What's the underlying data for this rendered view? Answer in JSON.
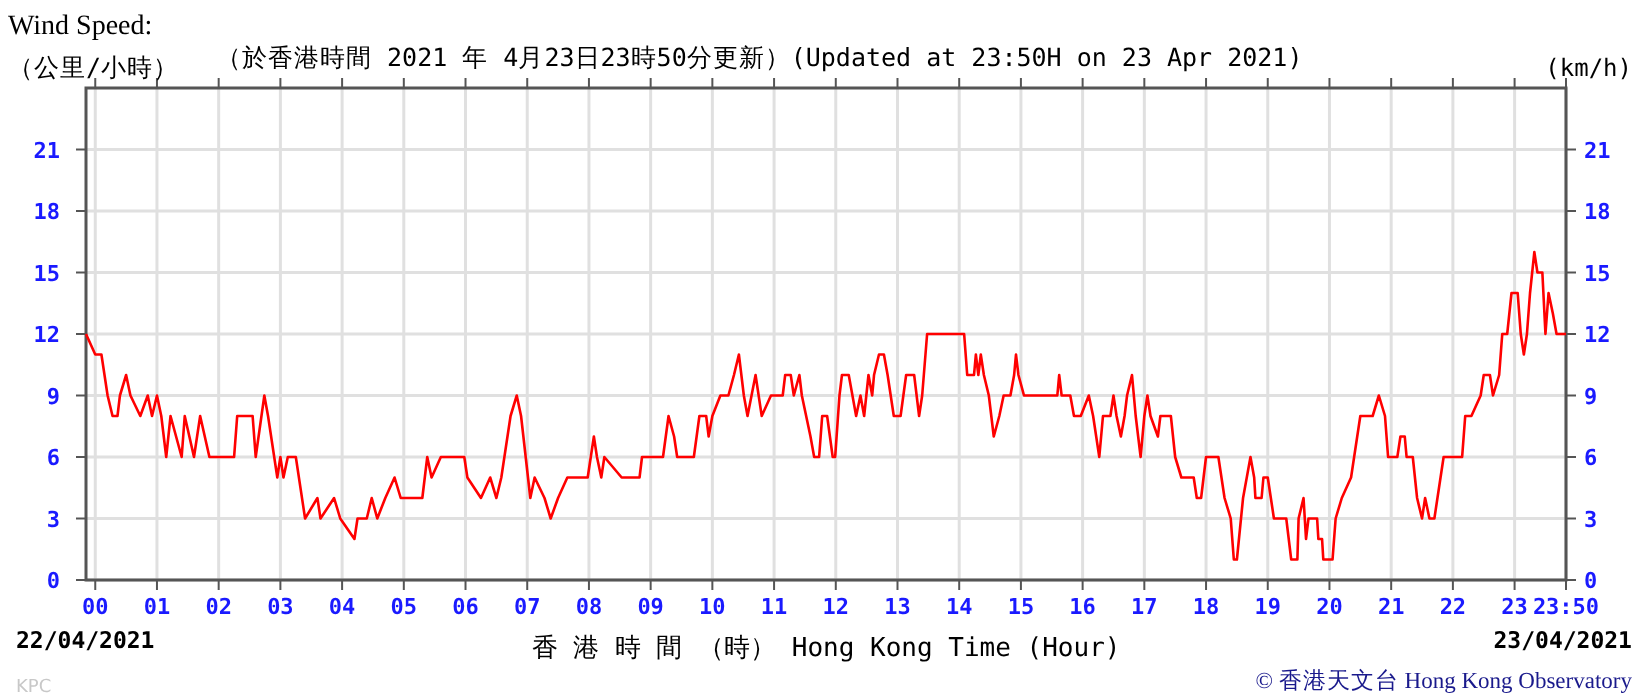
{
  "chart_data": {
    "type": "line",
    "title": "Wind Speed:",
    "subtitle": "（於香港時間 2021 年 4月23日23時50分更新）(Updated at 23:50H on 23 Apr 2021)",
    "ylabel": "（公里/小時）",
    "y2label": "(km/h)",
    "xlabel": "香 港 時 間 （時） Hong Kong Time (Hour)",
    "annotations": [
      "22/04/2021",
      "23/04/2021",
      "KPC",
      "© 香港天文台 Hong Kong Observatory"
    ],
    "xlim": [
      -0.15,
      23.833
    ],
    "xticks": [
      {
        "value": 0,
        "label": "00"
      },
      {
        "value": 1,
        "label": "01"
      },
      {
        "value": 2,
        "label": "02"
      },
      {
        "value": 3,
        "label": "03"
      },
      {
        "value": 4,
        "label": "04"
      },
      {
        "value": 5,
        "label": "05"
      },
      {
        "value": 6,
        "label": "06"
      },
      {
        "value": 7,
        "label": "07"
      },
      {
        "value": 8,
        "label": "08"
      },
      {
        "value": 9,
        "label": "09"
      },
      {
        "value": 10,
        "label": "10"
      },
      {
        "value": 11,
        "label": "11"
      },
      {
        "value": 12,
        "label": "12"
      },
      {
        "value": 13,
        "label": "13"
      },
      {
        "value": 14,
        "label": "14"
      },
      {
        "value": 15,
        "label": "15"
      },
      {
        "value": 16,
        "label": "16"
      },
      {
        "value": 17,
        "label": "17"
      },
      {
        "value": 18,
        "label": "18"
      },
      {
        "value": 19,
        "label": "19"
      },
      {
        "value": 20,
        "label": "20"
      },
      {
        "value": 21,
        "label": "21"
      },
      {
        "value": 22,
        "label": "22"
      },
      {
        "value": 23,
        "label": "23"
      },
      {
        "value": 23.833,
        "label": "23:50"
      }
    ],
    "ylim": [
      0,
      24
    ],
    "yticks": [
      0,
      3,
      6,
      9,
      12,
      15,
      18,
      21
    ],
    "y2lim": [
      0,
      24
    ],
    "y2ticks": [
      0,
      3,
      6,
      9,
      12,
      15,
      18,
      21
    ],
    "grid": true,
    "marker": "none",
    "line_style": "solid",
    "series": [
      {
        "color": "#ff0000",
        "x": [
          -0.15,
          0.0,
          0.1,
          0.2,
          0.28,
          0.36,
          0.4,
          0.5,
          0.57,
          0.73,
          0.85,
          0.92,
          1.0,
          1.07,
          1.15,
          1.22,
          1.4,
          1.45,
          1.6,
          1.7,
          1.85,
          2.25,
          2.3,
          2.55,
          2.6,
          2.74,
          2.8,
          2.95,
          3.0,
          3.05,
          3.12,
          3.25,
          3.4,
          3.6,
          3.65,
          3.87,
          3.97,
          4.2,
          4.25,
          4.4,
          4.48,
          4.57,
          4.7,
          4.85,
          4.95,
          5.3,
          5.38,
          5.45,
          5.6,
          5.98,
          6.03,
          6.25,
          6.4,
          6.5,
          6.58,
          6.73,
          6.83,
          6.9,
          7.05,
          7.12,
          7.28,
          7.38,
          7.5,
          7.65,
          7.98,
          8.08,
          8.13,
          8.2,
          8.25,
          8.53,
          8.82,
          8.86,
          9.2,
          9.29,
          9.38,
          9.43,
          9.7,
          9.79,
          9.9,
          9.94,
          10.0,
          10.13,
          10.26,
          10.35,
          10.43,
          10.51,
          10.57,
          10.7,
          10.8,
          10.95,
          11.14,
          11.18,
          11.27,
          11.32,
          11.41,
          11.45,
          11.59,
          11.65,
          11.73,
          11.78,
          11.86,
          11.95,
          11.99,
          12.06,
          12.1,
          12.21,
          12.27,
          12.33,
          12.4,
          12.46,
          12.53,
          12.59,
          12.62,
          12.7,
          12.78,
          12.84,
          12.89,
          12.94,
          13.05,
          13.14,
          13.27,
          13.35,
          13.4,
          13.48,
          14.08,
          14.13,
          14.24,
          14.27,
          14.31,
          14.35,
          14.4,
          14.48,
          14.56,
          14.65,
          14.72,
          14.83,
          14.89,
          14.92,
          14.96,
          15.05,
          15.59,
          15.62,
          15.66,
          15.8,
          15.86,
          15.97,
          16.1,
          16.17,
          16.27,
          16.33,
          16.45,
          16.5,
          16.55,
          16.62,
          16.68,
          16.72,
          16.8,
          16.86,
          16.9,
          16.94,
          17.0,
          17.05,
          17.1,
          17.22,
          17.26,
          17.43,
          17.5,
          17.6,
          17.8,
          17.85,
          17.92,
          18.0,
          18.2,
          18.3,
          18.4,
          18.45,
          18.5,
          18.6,
          18.72,
          18.78,
          18.8,
          18.9,
          18.93,
          19.0,
          19.05,
          19.1,
          19.3,
          19.38,
          19.48,
          19.5,
          19.58,
          19.62,
          19.66,
          19.8,
          19.82,
          19.88,
          19.9,
          20.05,
          20.1,
          20.2,
          20.35,
          20.4,
          20.5,
          20.7,
          20.8,
          20.9,
          20.95,
          21.1,
          21.15,
          21.22,
          21.25,
          21.35,
          21.42,
          21.5,
          21.55,
          21.62,
          21.7,
          21.8,
          21.85,
          22.15,
          22.2,
          22.3,
          22.45,
          22.5,
          22.6,
          22.65,
          22.75,
          22.8,
          22.88,
          22.95,
          23.05,
          23.1,
          23.15,
          23.2,
          23.25,
          23.32,
          23.37,
          23.45,
          23.5,
          23.55,
          23.62,
          23.68,
          23.833
        ],
        "values": [
          12,
          11,
          11,
          9,
          8,
          8,
          9,
          10,
          9,
          8,
          9,
          8,
          9,
          8,
          6,
          8,
          6,
          8,
          6,
          8,
          6,
          6,
          8,
          8,
          6,
          9,
          8,
          5,
          6,
          5,
          6,
          6,
          3,
          4,
          3,
          4,
          3,
          2,
          3,
          3,
          4,
          3,
          4,
          5,
          4,
          4,
          6,
          5,
          6,
          6,
          5,
          4,
          5,
          4,
          5,
          8,
          9,
          8,
          4,
          5,
          4,
          3,
          4,
          5,
          5,
          7,
          6,
          5,
          6,
          5,
          5,
          6,
          6,
          8,
          7,
          6,
          6,
          8,
          8,
          7,
          8,
          9,
          9,
          10,
          11,
          9,
          8,
          10,
          8,
          9,
          9,
          10,
          10,
          9,
          10,
          9,
          7,
          6,
          6,
          8,
          8,
          6,
          6,
          9,
          10,
          10,
          9,
          8,
          9,
          8,
          10,
          9,
          10,
          11,
          11,
          10,
          9,
          8,
          8,
          10,
          10,
          8,
          9,
          12,
          12,
          10,
          10,
          11,
          10,
          11,
          10,
          9,
          7,
          8,
          9,
          9,
          10,
          11,
          10,
          9,
          9,
          10,
          9,
          9,
          8,
          8,
          9,
          8,
          6,
          8,
          8,
          9,
          8,
          7,
          8,
          9,
          10,
          8,
          7,
          6,
          8,
          9,
          8,
          7,
          8,
          8,
          6,
          5,
          5,
          4,
          4,
          6,
          6,
          4,
          3,
          1,
          1,
          4,
          6,
          5,
          4,
          4,
          5,
          5,
          4,
          3,
          3,
          1,
          1,
          3,
          4,
          2,
          3,
          3,
          2,
          2,
          1,
          1,
          3,
          4,
          5,
          6,
          8,
          8,
          9,
          8,
          6,
          6,
          7,
          7,
          6,
          6,
          4,
          3,
          4,
          3,
          3,
          5,
          6,
          6,
          8,
          8,
          9,
          10,
          10,
          9,
          10,
          12,
          12,
          14,
          14,
          12,
          11,
          12,
          14,
          16,
          15,
          15,
          12,
          14,
          13,
          12,
          12
        ]
      }
    ]
  }
}
